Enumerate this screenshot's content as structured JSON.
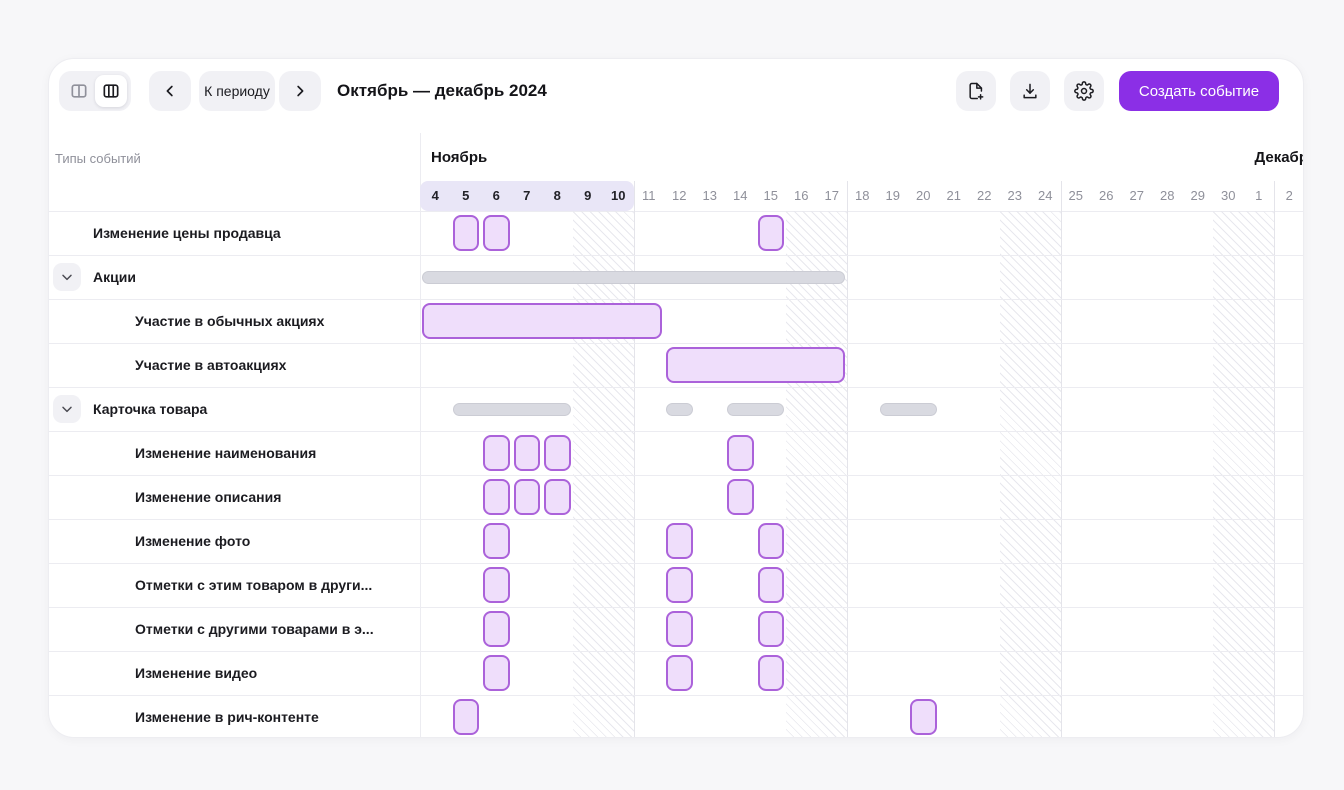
{
  "toolbar": {
    "view_modes": {
      "options": [
        {
          "icon": "two-columns-icon",
          "active": false
        },
        {
          "icon": "three-columns-icon",
          "active": true
        }
      ]
    },
    "prev_icon": "chevron-left-icon",
    "period_button": "К периоду",
    "next_icon": "chevron-right-icon",
    "title": "Октябрь — декабрь 2024",
    "export_icon": "file-plus-icon",
    "download_icon": "download-icon",
    "settings_icon": "gear-icon",
    "create_button": "Создать событие"
  },
  "sidebar": {
    "header": "Типы событий"
  },
  "colors": {
    "accent": "#8b2fe6",
    "event_fill": "#efdefb",
    "event_border": "#ab62da",
    "summary_fill": "#d9dae1",
    "current_week_highlight": "#e9e6f7"
  },
  "chart_data": {
    "type": "gantt",
    "period_title": "Октябрь — декабрь 2024",
    "months": [
      {
        "label": "Ноябрь",
        "start_index": 0
      },
      {
        "label": "Декабрь",
        "start_index": 27
      }
    ],
    "days": [
      4,
      5,
      6,
      7,
      8,
      9,
      10,
      11,
      12,
      13,
      14,
      15,
      16,
      17,
      18,
      19,
      20,
      21,
      22,
      23,
      24,
      25,
      26,
      27,
      28,
      29,
      30,
      1,
      2
    ],
    "current_week_highlight": {
      "start_index": 0,
      "end_index": 6
    },
    "weekend_indices": [
      5,
      6,
      12,
      13,
      19,
      20,
      26,
      27
    ],
    "week_start_indices": [
      7,
      14,
      21,
      28
    ],
    "rows": [
      {
        "label": "Изменение цены продавца",
        "kind": "item",
        "events": [
          {
            "start": 1,
            "len": 1
          },
          {
            "start": 2,
            "len": 1
          },
          {
            "start": 11,
            "len": 1
          }
        ]
      },
      {
        "label": "Акции",
        "kind": "group",
        "bars": [
          {
            "start": 0,
            "len": 14
          }
        ]
      },
      {
        "label": "Участие в обычных акциях",
        "kind": "child",
        "events": [
          {
            "start": 0,
            "len": 8
          }
        ]
      },
      {
        "label": "Участие в автоакциях",
        "kind": "child",
        "events": [
          {
            "start": 8,
            "len": 6
          }
        ]
      },
      {
        "label": "Карточка товара",
        "kind": "group",
        "bars": [
          {
            "start": 1,
            "len": 4
          },
          {
            "start": 8,
            "len": 1
          },
          {
            "start": 10,
            "len": 2
          },
          {
            "start": 15,
            "len": 2
          }
        ]
      },
      {
        "label": "Изменение наименования",
        "kind": "child",
        "events": [
          {
            "start": 2,
            "len": 1
          },
          {
            "start": 3,
            "len": 1
          },
          {
            "start": 4,
            "len": 1
          },
          {
            "start": 10,
            "len": 1
          }
        ]
      },
      {
        "label": "Изменение описания",
        "kind": "child",
        "events": [
          {
            "start": 2,
            "len": 1
          },
          {
            "start": 3,
            "len": 1
          },
          {
            "start": 4,
            "len": 1
          },
          {
            "start": 10,
            "len": 1
          }
        ]
      },
      {
        "label": "Изменение фото",
        "kind": "child",
        "events": [
          {
            "start": 2,
            "len": 1
          },
          {
            "start": 8,
            "len": 1
          },
          {
            "start": 11,
            "len": 1
          }
        ]
      },
      {
        "label": "Отметки с этим товаром в други...",
        "kind": "child",
        "events": [
          {
            "start": 2,
            "len": 1
          },
          {
            "start": 8,
            "len": 1
          },
          {
            "start": 11,
            "len": 1
          }
        ]
      },
      {
        "label": "Отметки с другими товарами в э...",
        "kind": "child",
        "events": [
          {
            "start": 2,
            "len": 1
          },
          {
            "start": 8,
            "len": 1
          },
          {
            "start": 11,
            "len": 1
          }
        ]
      },
      {
        "label": "Изменение видео",
        "kind": "child",
        "events": [
          {
            "start": 2,
            "len": 1
          },
          {
            "start": 8,
            "len": 1
          },
          {
            "start": 11,
            "len": 1
          }
        ]
      },
      {
        "label": "Изменение в рич-контенте",
        "kind": "child",
        "events": [
          {
            "start": 1,
            "len": 1
          },
          {
            "start": 16,
            "len": 1
          }
        ]
      }
    ]
  }
}
